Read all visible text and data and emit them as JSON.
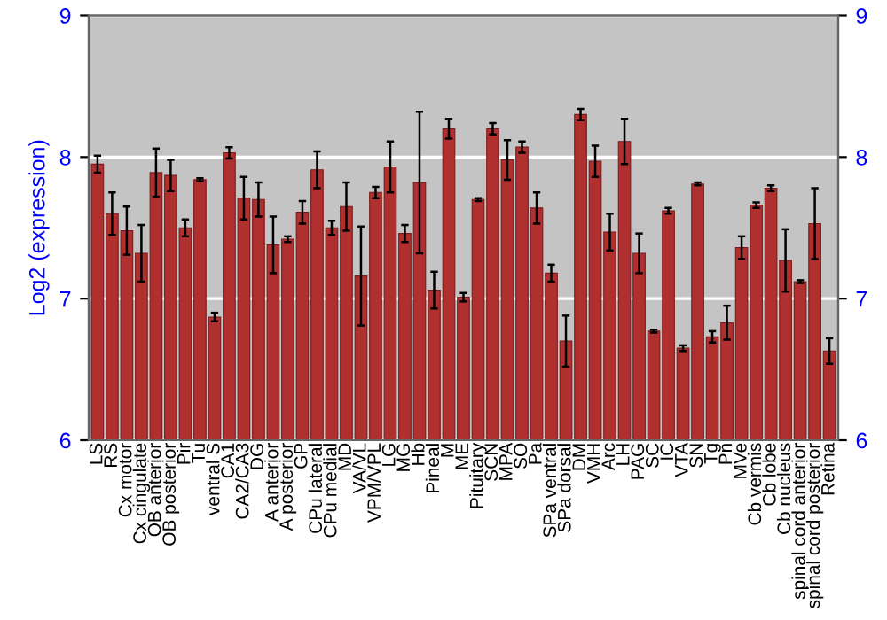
{
  "chart_data": {
    "type": "bar",
    "ylabel": "Log2 (expression)",
    "categories": [
      "LS",
      "RS",
      "Cx motor",
      "Cx cingulate",
      "OB anterior",
      "OB posterior",
      "Pir",
      "Tu",
      "ventral S",
      "CA1",
      "CA2/CA3",
      "DG",
      "A anterior",
      "A posterior",
      "GP",
      "CPu lateral",
      "CPu medial",
      "MD",
      "VA/VL",
      "VPM/VPL",
      "LG",
      "MG",
      "Hb",
      "Pineal",
      "M",
      "ME",
      "Pituitary",
      "SCN",
      "MPA",
      "SO",
      "Pa",
      "SPa ventral",
      "SPa dorsal",
      "DM",
      "VMH",
      "Arc",
      "LH",
      "PAG",
      "SC",
      "IC",
      "VTA",
      "SN",
      "Tg",
      "Pn",
      "MVe",
      "Cb vermis",
      "Cb lobe",
      "Cb nucleus",
      "spinal cord anterior",
      "spinal cord posterior",
      "Retina"
    ],
    "series": [
      {
        "color": "#b03030",
        "values": [
          7.95,
          7.6,
          7.48,
          7.32,
          7.89,
          7.87,
          7.5,
          7.84,
          6.87,
          8.03,
          7.71,
          7.7,
          7.38,
          7.42,
          7.61,
          7.91,
          7.5,
          7.65,
          7.16,
          7.75,
          7.93,
          7.46,
          7.82,
          7.06,
          8.2,
          7.01,
          7.7,
          8.2,
          7.98,
          8.07,
          7.64,
          7.18,
          6.7,
          8.3,
          7.97,
          7.47,
          8.11,
          7.32,
          6.77,
          7.62,
          6.65,
          7.81,
          6.73,
          6.83,
          7.36,
          7.66,
          7.78,
          7.27,
          7.12,
          7.53,
          6.63
        ],
        "errors": [
          0.06,
          0.15,
          0.17,
          0.2,
          0.17,
          0.11,
          0.06,
          0.01,
          0.03,
          0.04,
          0.15,
          0.12,
          0.2,
          0.02,
          0.08,
          0.13,
          0.05,
          0.17,
          0.35,
          0.04,
          0.18,
          0.06,
          0.5,
          0.13,
          0.07,
          0.03,
          0.01,
          0.04,
          0.14,
          0.04,
          0.11,
          0.06,
          0.18,
          0.04,
          0.11,
          0.13,
          0.16,
          0.14,
          0.01,
          0.02,
          0.02,
          0.01,
          0.04,
          0.12,
          0.08,
          0.02,
          0.02,
          0.22,
          0.01,
          0.25,
          0.09
        ]
      }
    ],
    "ylim": [
      6,
      9
    ],
    "yticks": [
      6,
      7,
      8,
      9
    ],
    "y2lim": [
      6,
      9
    ],
    "y2ticks": [
      6,
      7,
      8,
      9
    ],
    "grid": "y",
    "legend": false
  }
}
